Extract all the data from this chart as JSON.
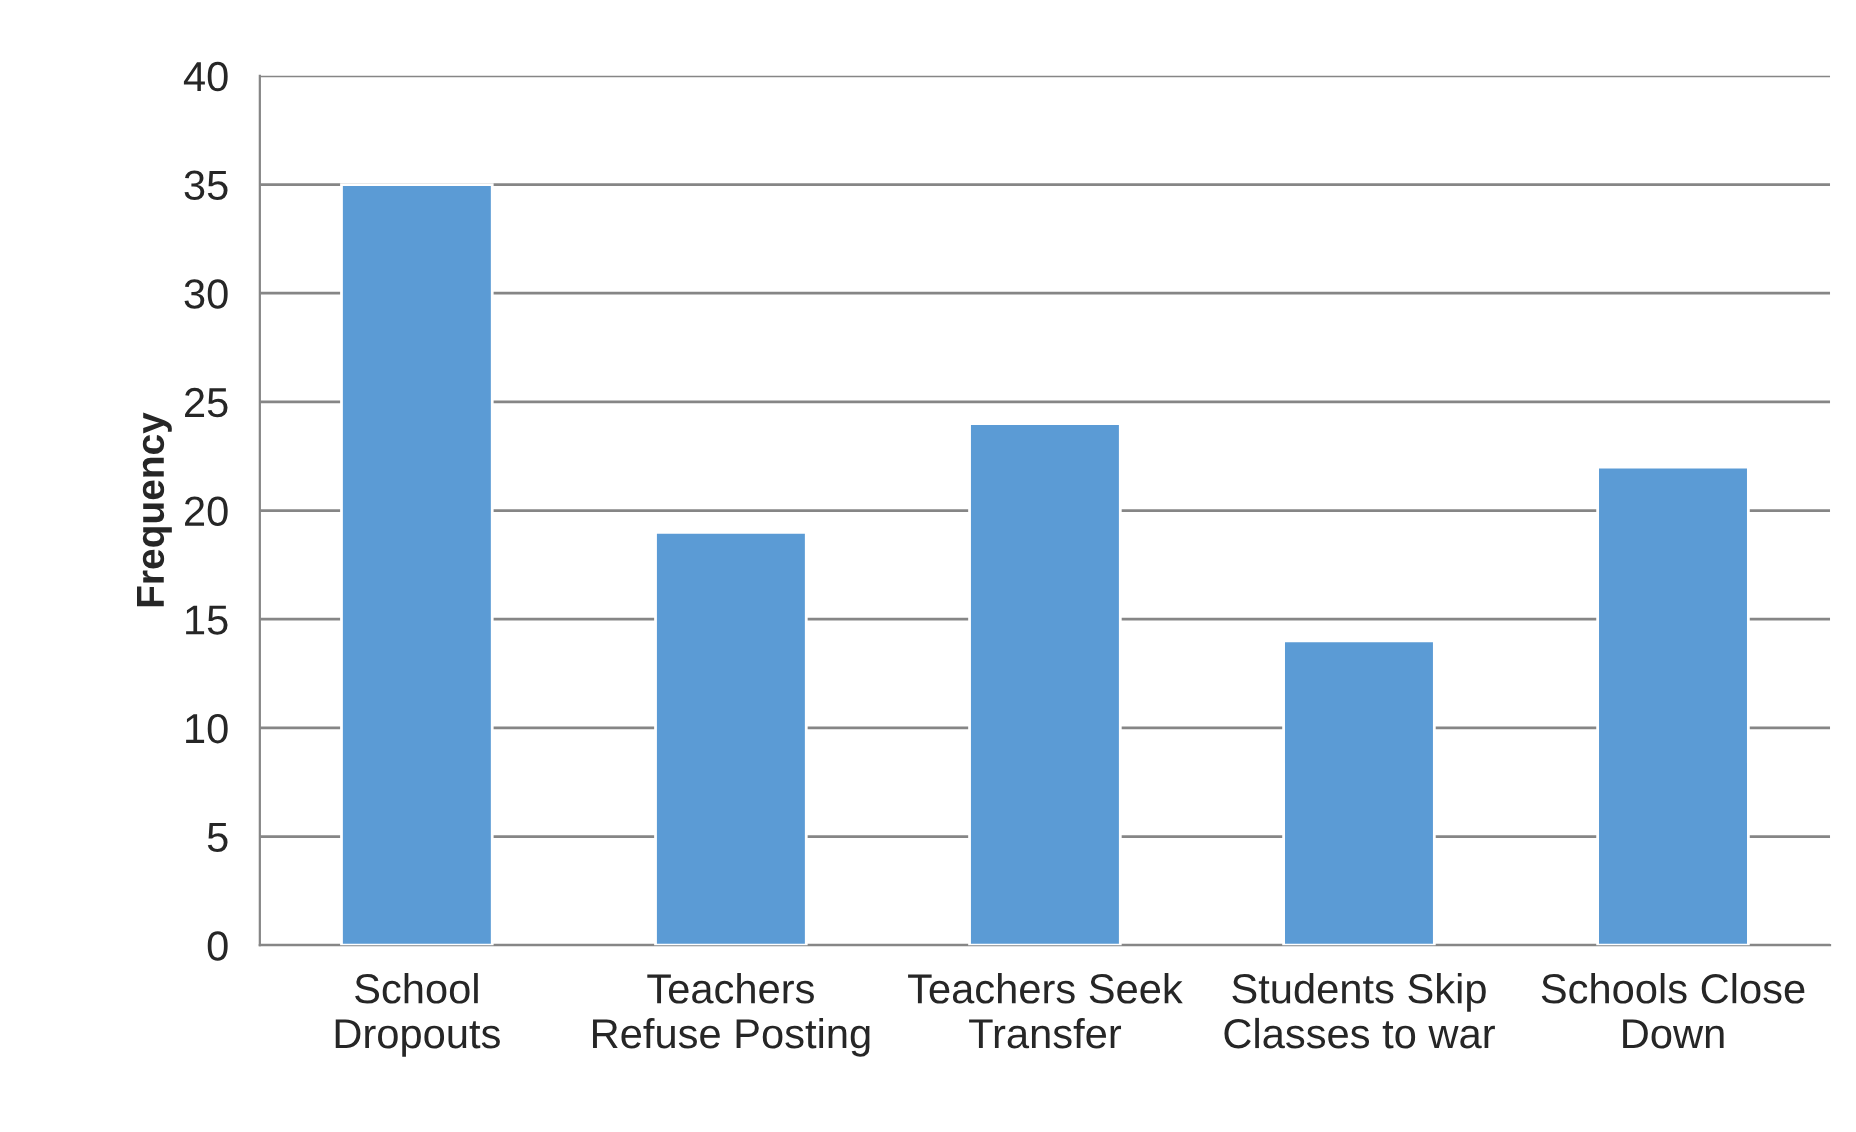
{
  "chart_data": {
    "type": "bar",
    "ylabel": "Frequency",
    "categories": [
      "School\nDropouts",
      "Teachers\nRefuse Posting",
      "Teachers Seek\nTransfer",
      "Students Skip\nClasses to war",
      "Schools Close\nDown"
    ],
    "values": [
      35,
      19,
      24,
      14,
      22
    ],
    "color": "#5b9bd5",
    "ylim": [
      0,
      40
    ],
    "yticks": [
      0,
      5,
      10,
      15,
      20,
      25,
      30,
      35,
      40
    ],
    "grid": "y",
    "legend": false
  }
}
